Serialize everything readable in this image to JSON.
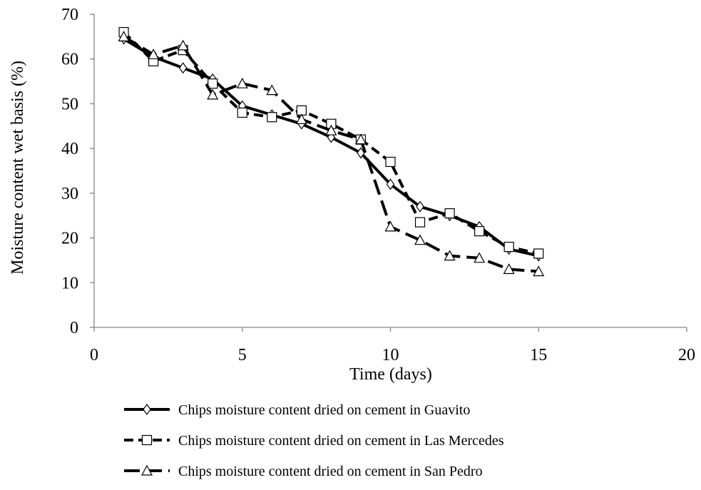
{
  "chart_data": {
    "type": "line",
    "title": "",
    "xlabel": "Time (days)",
    "ylabel": "Moisture content wet basis  (%)",
    "xlim": [
      0,
      20
    ],
    "ylim": [
      0,
      70
    ],
    "x_ticks": [
      0,
      5,
      10,
      15,
      20
    ],
    "y_ticks": [
      0,
      10,
      20,
      30,
      40,
      50,
      60,
      70
    ],
    "grid": false,
    "legend_position": "bottom",
    "series": [
      {
        "name": "Chips moisture content dried on cement in Guavito",
        "marker": "diamond",
        "line_style": "solid",
        "x": [
          1,
          2,
          3,
          4,
          5,
          6,
          7,
          8,
          9,
          10,
          11,
          12,
          13,
          14,
          15
        ],
        "y": [
          64.5,
          60.5,
          58,
          55.5,
          49.5,
          47.5,
          45.5,
          42.5,
          39,
          32,
          27,
          25,
          22.5,
          17.5,
          16
        ]
      },
      {
        "name": "Chips moisture content dried on cement in Las Mercedes",
        "marker": "square",
        "line_style": "dashed",
        "x": [
          1,
          2,
          3,
          4,
          5,
          6,
          7,
          8,
          9,
          10,
          11,
          12,
          13,
          14,
          15
        ],
        "y": [
          66,
          59.5,
          62,
          54.5,
          48,
          47,
          48.5,
          45.5,
          42,
          37,
          23.5,
          25.5,
          21.5,
          18,
          16.5
        ]
      },
      {
        "name": "Chips moisture content dried on cement in San Pedro",
        "marker": "triangle",
        "line_style": "long-dash",
        "x": [
          1,
          2,
          3,
          4,
          5,
          6,
          7,
          8,
          9,
          10,
          11,
          12,
          13,
          14,
          15
        ],
        "y": [
          65,
          61,
          63,
          52,
          54.5,
          53,
          46.5,
          44,
          42,
          22.5,
          19.5,
          16,
          15.5,
          13,
          12.5
        ]
      }
    ]
  }
}
